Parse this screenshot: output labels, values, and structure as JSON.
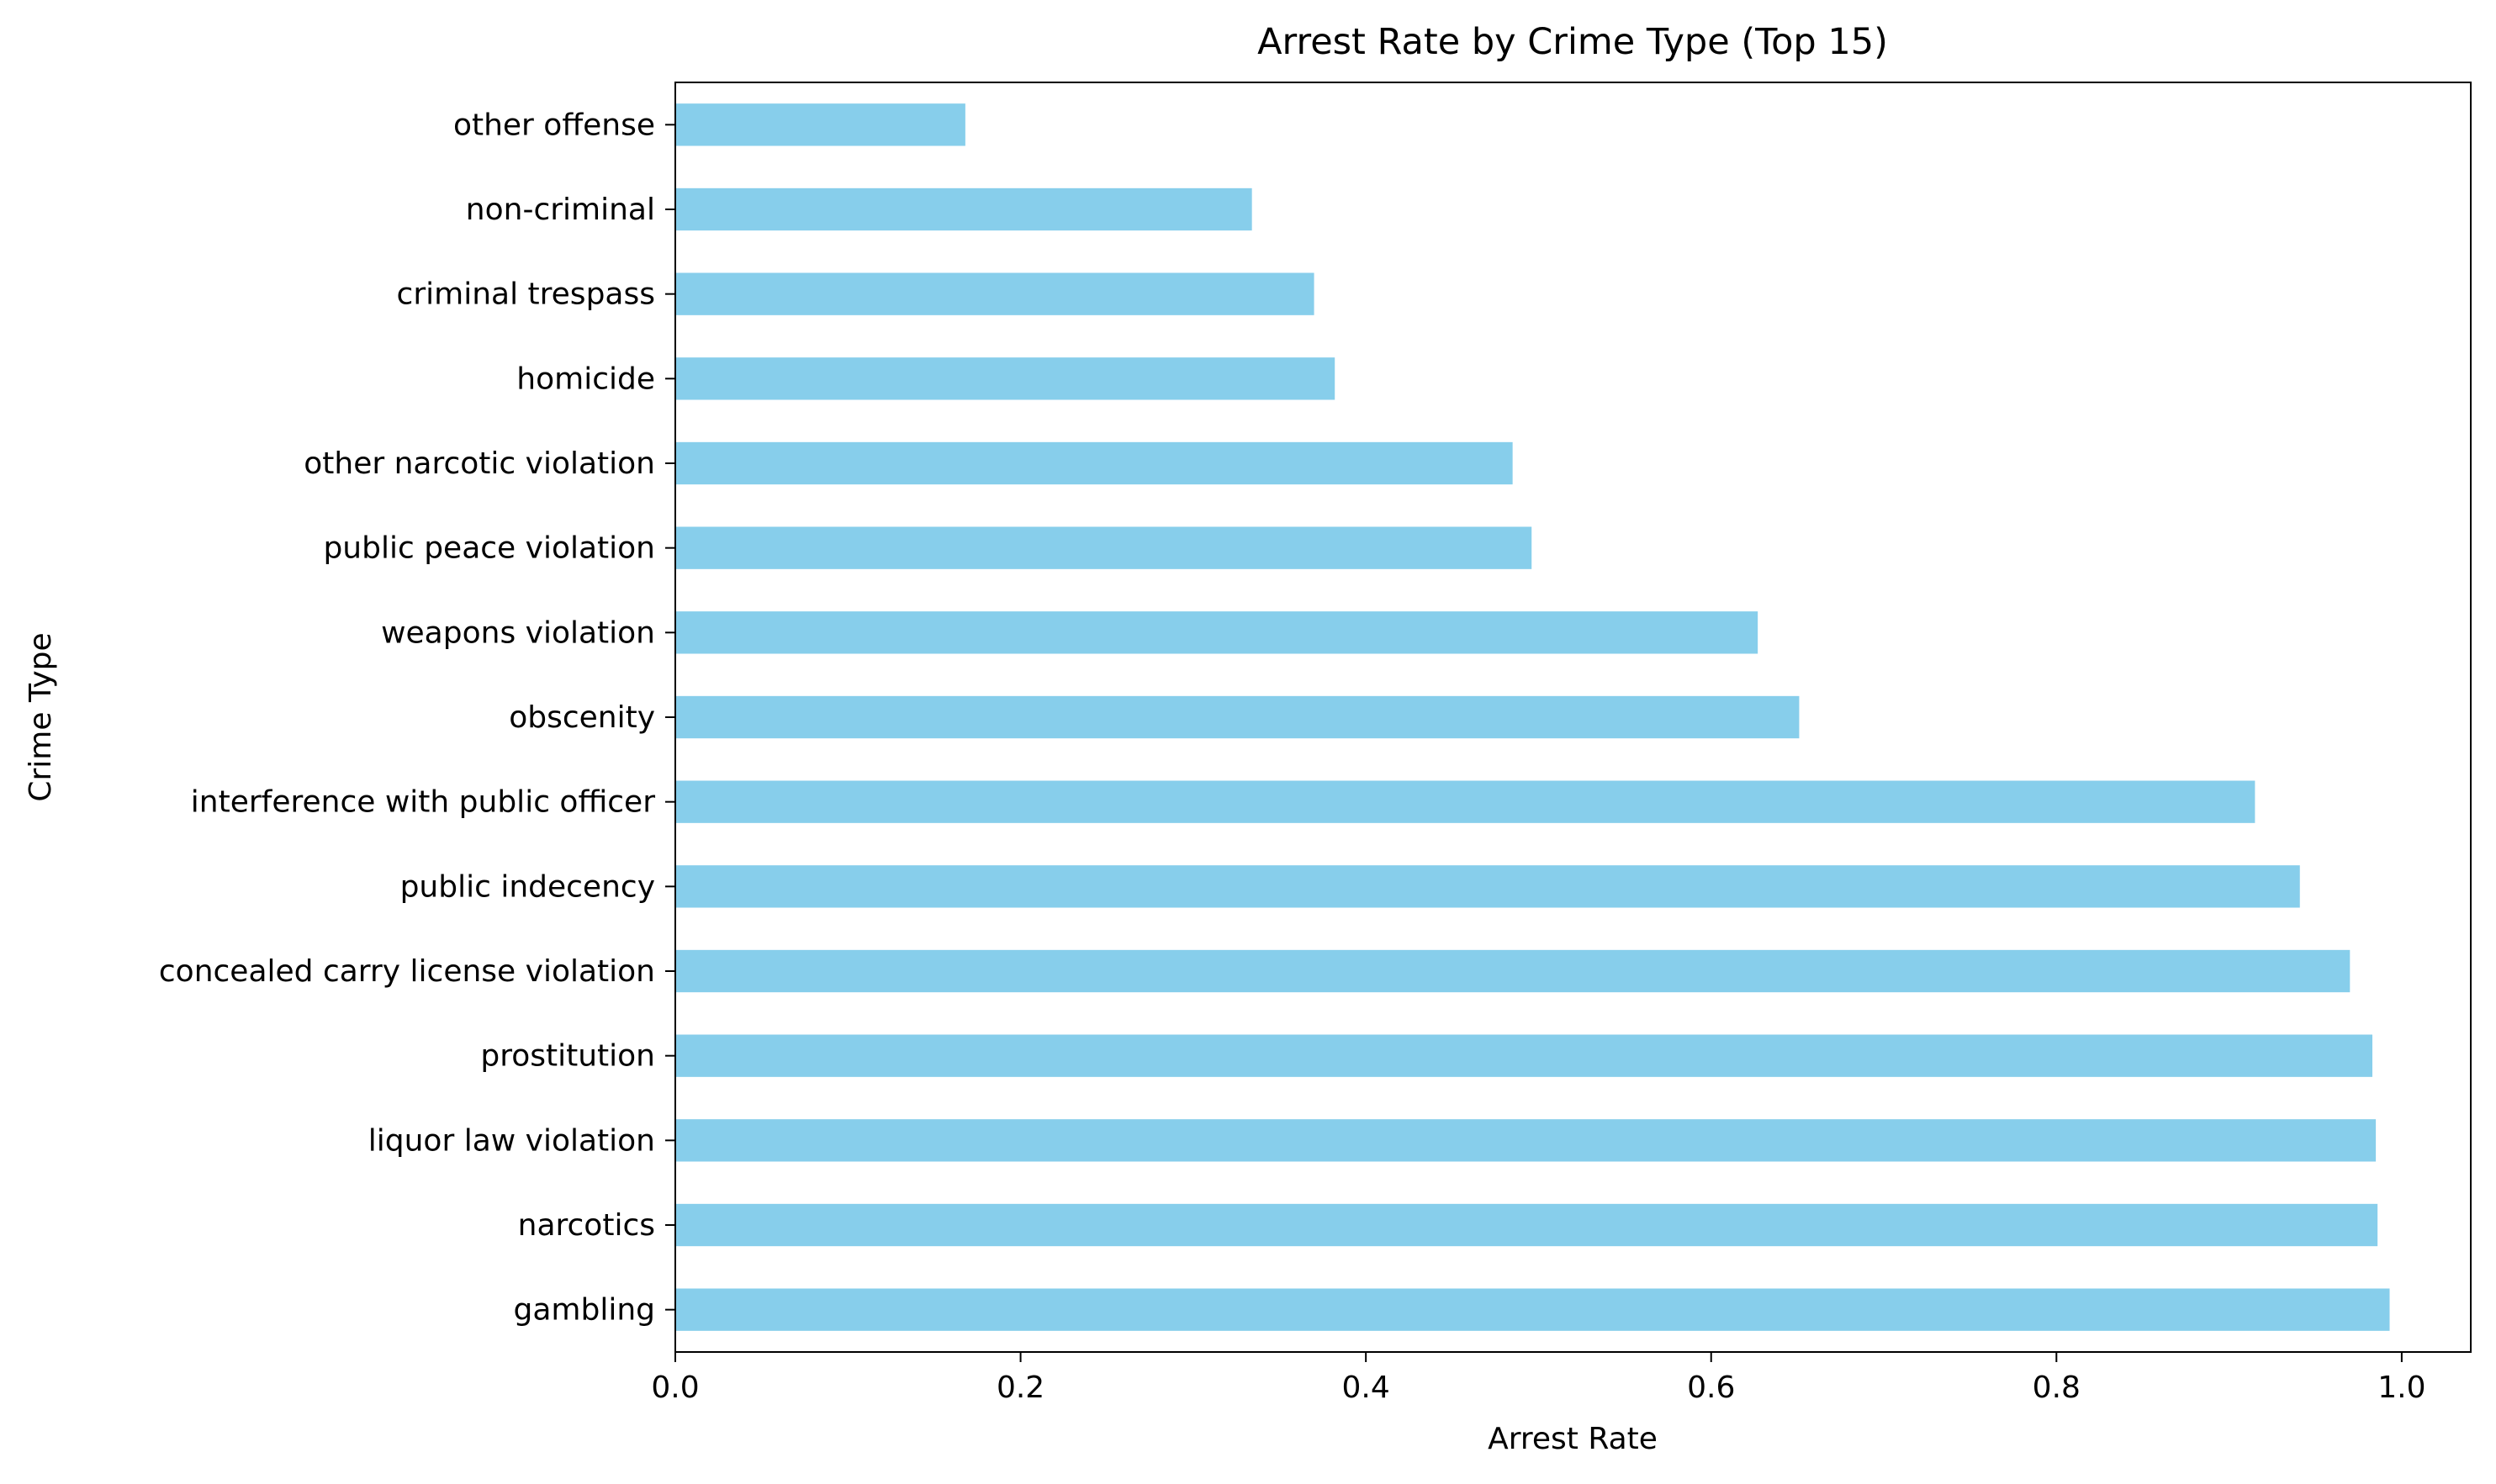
{
  "chart_data": {
    "type": "bar",
    "orientation": "horizontal",
    "title": "Arrest Rate by Crime Type (Top 15)",
    "xlabel": "Arrest Rate",
    "ylabel": "Crime Type",
    "categories": [
      "gambling",
      "narcotics",
      "liquor law violation",
      "prostitution",
      "concealed carry license violation",
      "public indecency",
      "interference with public officer",
      "obscenity",
      "weapons violation",
      "public peace violation",
      "other narcotic violation",
      "homicide",
      "criminal trespass",
      "non-criminal",
      "other offense"
    ],
    "values": [
      0.993,
      0.986,
      0.985,
      0.983,
      0.97,
      0.941,
      0.915,
      0.651,
      0.627,
      0.496,
      0.485,
      0.382,
      0.37,
      0.334,
      0.168
    ],
    "xlim": [
      0.0,
      1.04
    ],
    "xticks": [
      0.0,
      0.2,
      0.4,
      0.6,
      0.8,
      1.0
    ],
    "xtick_labels": [
      "0.0",
      "0.2",
      "0.4",
      "0.6",
      "0.8",
      "1.0"
    ],
    "bar_color": "#87ceeb",
    "grid": false,
    "legend": "none"
  }
}
